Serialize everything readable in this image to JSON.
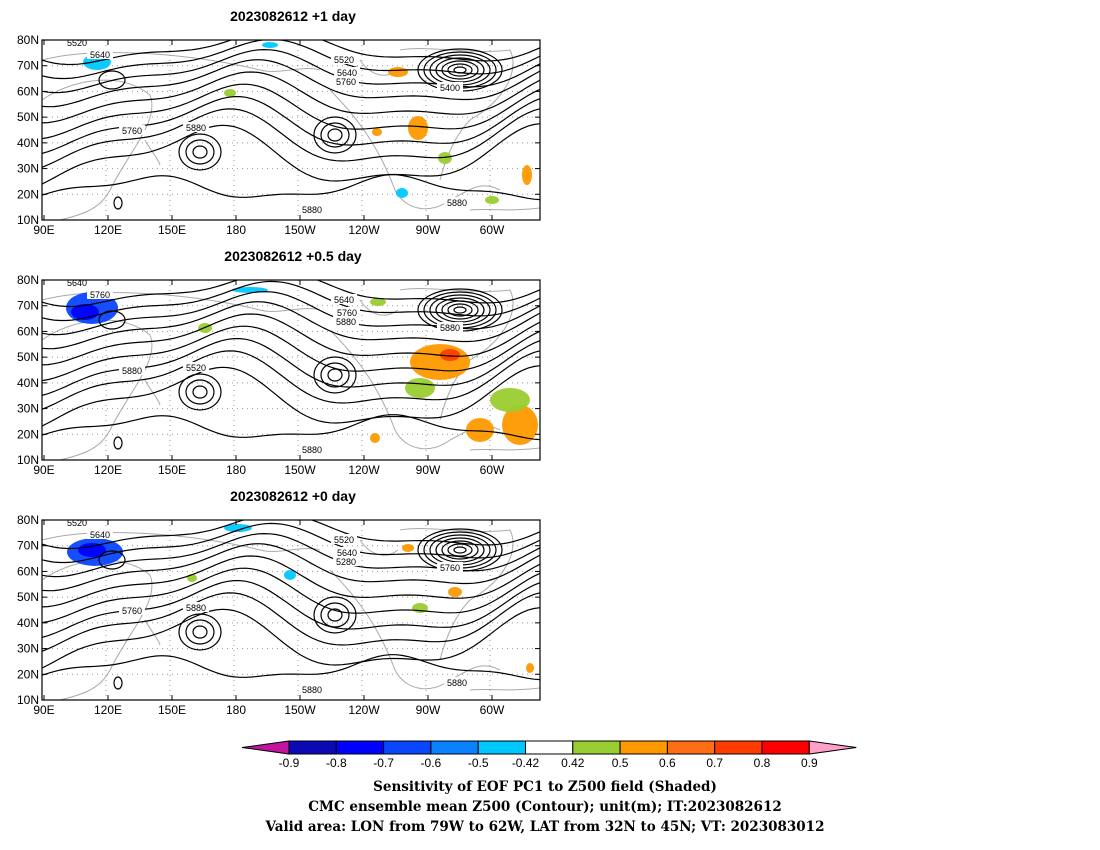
{
  "panels": [
    {
      "title": "2023082612  +1 day",
      "contour_labels": [
        "5520",
        "5640",
        "5760",
        "5880",
        "5520",
        "5640",
        "5760",
        "5400",
        "5880",
        "5880"
      ]
    },
    {
      "title": "2023082612  +0.5 day",
      "contour_labels": [
        "5640",
        "5760",
        "5880",
        "5520",
        "5640",
        "5760",
        "5880",
        "5880",
        "5880"
      ]
    },
    {
      "title": "2023082612  +0 day",
      "contour_labels": [
        "5520",
        "5640",
        "5760",
        "5880",
        "5520",
        "5640",
        "5280",
        "5760",
        "5880",
        "5880"
      ]
    }
  ],
  "axes": {
    "lat_ticks": [
      "80N",
      "70N",
      "60N",
      "50N",
      "40N",
      "30N",
      "20N",
      "10N"
    ],
    "lon_ticks": [
      "90E",
      "120E",
      "150E",
      "180",
      "150W",
      "120W",
      "90W",
      "60W"
    ]
  },
  "colorbar": {
    "ticks": [
      "-0.9",
      "-0.8",
      "-0.7",
      "-0.6",
      "-0.5",
      "-0.42",
      "0.42",
      "0.5",
      "0.6",
      "0.7",
      "0.8",
      "0.9"
    ],
    "colors": [
      "#c0149e",
      "#0a0ab4",
      "#0000ff",
      "#0a46ff",
      "#0a82ff",
      "#00c8ff",
      "#ffffff",
      "#9acd32",
      "#ff9900",
      "#ff6e14",
      "#ff3c00",
      "#ff0000",
      "#ffa0c8"
    ]
  },
  "caption": [
    "Sensitivity of EOF PC1 to Z500 field (Shaded)",
    "CMC ensemble mean Z500 (Contour); unit(m); IT:2023082612",
    "Valid area: LON from 79W to 62W, LAT from 32N to 45N; VT: 2023083012"
  ]
}
